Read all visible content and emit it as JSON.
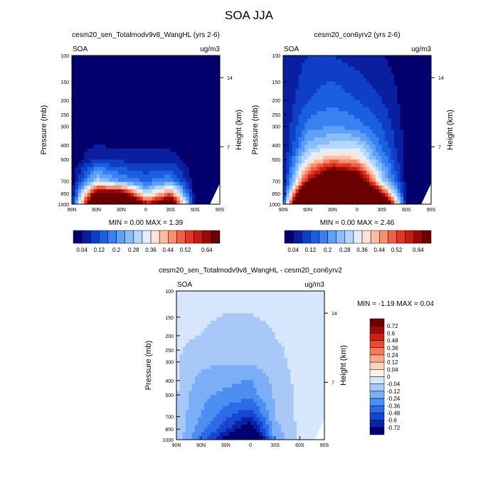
{
  "title": "SOA JJA",
  "units_label": "ug/m3",
  "variable_label": "SOA",
  "ylabel_left": "Pressure (mb)",
  "ylabel_right": "Height (km)",
  "pressure_ticks": [
    100,
    150,
    200,
    250,
    300,
    400,
    500,
    700,
    850,
    1000
  ],
  "height_ticks": [
    14,
    7
  ],
  "lat_tick_labels": [
    "90N",
    "60N",
    "30N",
    "0",
    "30S",
    "60S",
    "90S"
  ],
  "colorbar_ticks": [
    "0.04",
    "0.12",
    "0.2",
    "0.28",
    "0.36",
    "0.44",
    "0.52",
    "0.64"
  ],
  "diff_colorbar_ticks": [
    "0.72",
    "0.6",
    "0.48",
    "0.36",
    "0.24",
    "0.12",
    "0.04",
    "0",
    "-0.04",
    "-0.12",
    "-0.24",
    "-0.36",
    "-0.48",
    "-0.6",
    "-0.72"
  ],
  "colors": {
    "seq": [
      "#03006e",
      "#0a1fa0",
      "#0f3fc6",
      "#1a5fe0",
      "#3a80f2",
      "#5ea0f6",
      "#88bdf8",
      "#b4d6fb",
      "#e2eefc",
      "#ffe3d6",
      "#fbbca3",
      "#f69072",
      "#ef6047",
      "#e23624",
      "#c41b13",
      "#960b07",
      "#6b0000"
    ],
    "div": [
      "#020070",
      "#0a21a8",
      "#1846d2",
      "#2b6ae8",
      "#4c8ef2",
      "#7aaef6",
      "#a8c8f8",
      "#d6e6fc",
      "#fff0e6",
      "#fcd2bd",
      "#f9a98d",
      "#f47a5b",
      "#e84b32",
      "#cc2116",
      "#9e0a06",
      "#6b0000"
    ],
    "missing": "#ffffff"
  },
  "panels": [
    {
      "title": "cesm20_sen_Totalmodv9v8_WangHL (yrs 2-6)",
      "min_max": "MIN =  0.00  MAX =   1.39"
    },
    {
      "title": "cesm20_con6yrv2 (yrs 2-6)",
      "min_max": "MIN =  0.00  MAX =   2.46"
    },
    {
      "title": "cesm20_sen_Totalmodv9v8_WangHL - cesm20_con6yrv2",
      "min_max": "MIN =  -1.19  MAX =   0.04"
    }
  ],
  "chart_data": [
    {
      "type": "heatmap",
      "title": "cesm20_sen_Totalmodv9v8_WangHL (yrs 2-6)",
      "xlabel": "",
      "ylabel": "Pressure (mb)",
      "ylabel_right": "Height (km)",
      "units": "ug/m3",
      "x": [
        90,
        60,
        30,
        0,
        -30,
        -60,
        -90
      ],
      "y": [
        1000,
        850,
        700,
        500,
        400,
        300,
        200,
        100
      ],
      "z": [
        [
          0.04,
          1.0,
          1.2,
          0.6,
          0.8,
          0.01,
          0.0
        ],
        [
          0.02,
          0.7,
          0.7,
          0.3,
          0.5,
          0.01,
          0.0
        ],
        [
          0.01,
          0.3,
          0.2,
          0.15,
          0.2,
          0.01,
          0.0
        ],
        [
          0.01,
          0.08,
          0.07,
          0.06,
          0.06,
          0.01,
          0.01
        ],
        [
          0.01,
          0.04,
          0.03,
          0.03,
          0.03,
          0.01,
          0.01
        ],
        [
          0.01,
          0.02,
          0.02,
          0.02,
          0.02,
          0.01,
          0.01
        ],
        [
          0.01,
          0.02,
          0.01,
          0.01,
          0.01,
          0.01,
          0.01
        ],
        [
          0.01,
          0.01,
          0.01,
          0.01,
          0.01,
          0.01,
          0.01
        ]
      ],
      "min": 0.0,
      "max": 1.39,
      "levels": [
        0.04,
        0.12,
        0.2,
        0.28,
        0.36,
        0.44,
        0.52,
        0.64
      ]
    },
    {
      "type": "heatmap",
      "title": "cesm20_con6yrv2 (yrs 2-6)",
      "xlabel": "",
      "ylabel": "Pressure (mb)",
      "ylabel_right": "Height (km)",
      "units": "ug/m3",
      "x": [
        90,
        60,
        30,
        0,
        -30,
        -60,
        -90
      ],
      "y": [
        1000,
        850,
        700,
        500,
        400,
        300,
        200,
        100
      ],
      "z": [
        [
          0.1,
          1.5,
          2.4,
          2.3,
          1.0,
          0.03,
          0.0
        ],
        [
          0.05,
          1.0,
          1.4,
          1.3,
          0.6,
          0.02,
          0.0
        ],
        [
          0.03,
          0.6,
          0.9,
          0.8,
          0.3,
          0.02,
          0.0
        ],
        [
          0.03,
          0.35,
          0.45,
          0.4,
          0.2,
          0.02,
          0.01
        ],
        [
          0.03,
          0.25,
          0.3,
          0.3,
          0.15,
          0.02,
          0.01
        ],
        [
          0.04,
          0.18,
          0.2,
          0.18,
          0.12,
          0.02,
          0.01
        ],
        [
          0.04,
          0.12,
          0.15,
          0.12,
          0.08,
          0.02,
          0.01
        ],
        [
          0.05,
          0.08,
          0.08,
          0.06,
          0.04,
          0.02,
          0.01
        ]
      ],
      "min": 0.0,
      "max": 2.46,
      "levels": [
        0.04,
        0.12,
        0.2,
        0.28,
        0.36,
        0.44,
        0.52,
        0.64
      ]
    },
    {
      "type": "heatmap",
      "title": "cesm20_sen_Totalmodv9v8_WangHL - cesm20_con6yrv2",
      "xlabel": "",
      "ylabel": "Pressure (mb)",
      "ylabel_right": "Height (km)",
      "units": "ug/m3",
      "x": [
        90,
        60,
        30,
        0,
        -30,
        -60,
        -90
      ],
      "y": [
        1000,
        850,
        700,
        500,
        400,
        300,
        200,
        100
      ],
      "z": [
        [
          -0.03,
          -0.4,
          -0.8,
          -1.19,
          -0.2,
          -0.02,
          0.0
        ],
        [
          -0.03,
          -0.3,
          -0.55,
          -0.9,
          -0.15,
          -0.02,
          0.0
        ],
        [
          -0.03,
          -0.25,
          -0.45,
          -0.6,
          -0.12,
          -0.02,
          0.0
        ],
        [
          -0.03,
          -0.2,
          -0.28,
          -0.3,
          -0.1,
          -0.02,
          -0.01
        ],
        [
          -0.03,
          -0.15,
          -0.2,
          -0.25,
          -0.08,
          -0.02,
          -0.01
        ],
        [
          -0.03,
          -0.1,
          -0.1,
          -0.1,
          -0.06,
          -0.02,
          -0.01
        ],
        [
          -0.03,
          -0.04,
          -0.05,
          -0.05,
          -0.04,
          -0.02,
          -0.01
        ],
        [
          -0.03,
          -0.03,
          -0.03,
          -0.03,
          -0.03,
          -0.02,
          -0.01
        ]
      ],
      "min": -1.19,
      "max": 0.04,
      "levels": [
        -0.72,
        -0.6,
        -0.48,
        -0.36,
        -0.24,
        -0.12,
        -0.04,
        0,
        0.04,
        0.12,
        0.24,
        0.36,
        0.48,
        0.6,
        0.72
      ]
    }
  ]
}
